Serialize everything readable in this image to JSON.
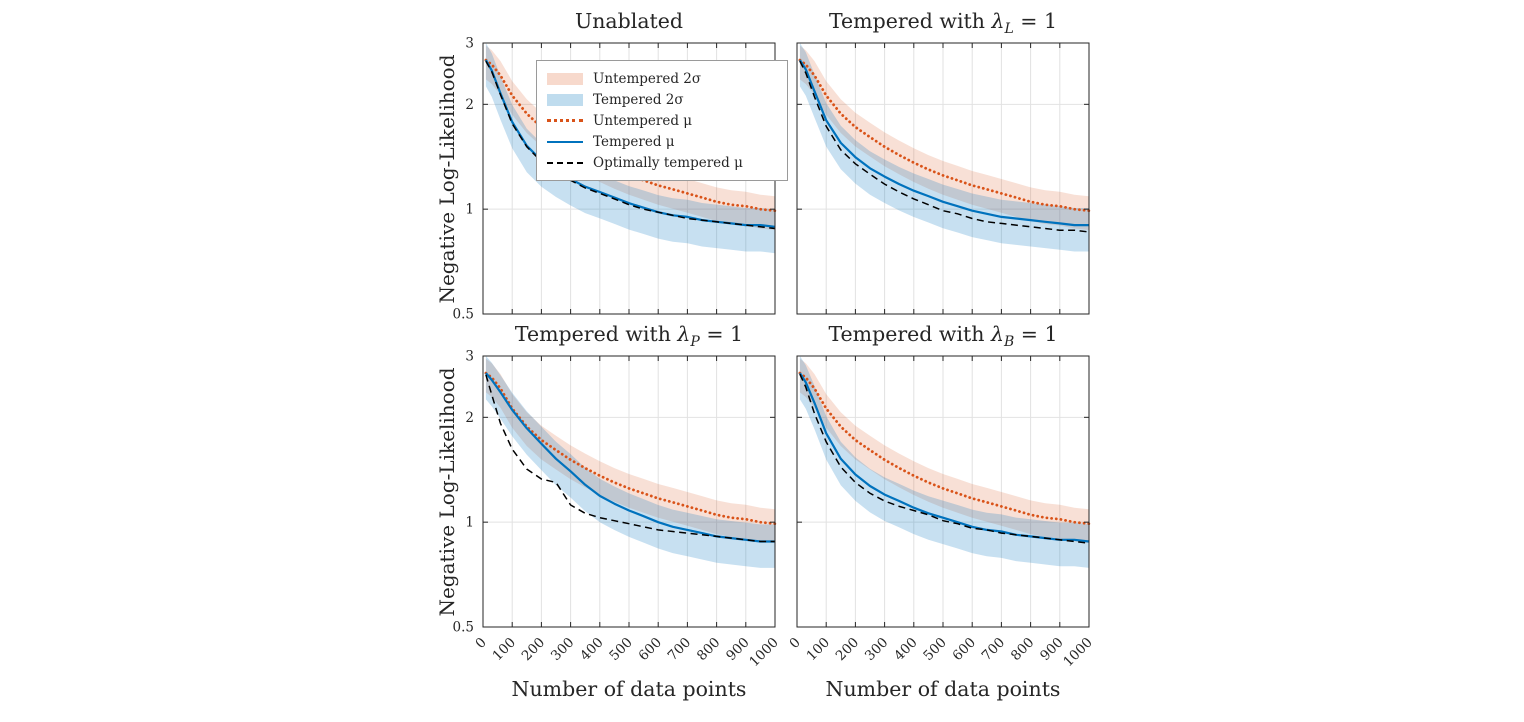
{
  "chart_data": {
    "type": "line",
    "title": "",
    "xlabel": "Number of data points",
    "ylabel": "Negative Log-Likelihood",
    "xlim": [
      0,
      1000
    ],
    "ylim": [
      0.5,
      3
    ],
    "yscale": "log",
    "grid": true,
    "xticks": [
      0,
      100,
      200,
      300,
      400,
      500,
      600,
      700,
      800,
      900,
      1000
    ],
    "yticks": [
      0.5,
      1,
      2,
      3
    ],
    "ytick_labels": [
      "0.5",
      "1",
      "2",
      "3"
    ],
    "legend_position": "upper-left of first panel",
    "legend": [
      {
        "label": "Untempered 2σ",
        "type": "band",
        "color": "#D95319"
      },
      {
        "label": "Tempered 2σ",
        "type": "band",
        "color": "#0072BD"
      },
      {
        "label": "Untempered μ",
        "type": "dotted-line",
        "color": "#D95319"
      },
      {
        "label": "Tempered μ",
        "type": "solid-line",
        "color": "#0072BD"
      },
      {
        "label": "Optimally tempered μ",
        "type": "dashed-line",
        "color": "#000000"
      }
    ],
    "colors": {
      "untempered_line": "#D95319",
      "tempered_line": "#0072BD",
      "optimal_line": "#000000",
      "untempered_band": "rgba(217,83,25,0.18)",
      "tempered_band": "rgba(0,114,189,0.22)",
      "grid": "#e2e2e2",
      "axis": "#262626"
    },
    "band_factors": {
      "untempered": {
        "upper": 1.1,
        "lower": 0.88
      },
      "tempered": {
        "upper": 1.12,
        "lower": 0.84
      }
    },
    "x": [
      10,
      30,
      60,
      100,
      150,
      200,
      250,
      300,
      350,
      400,
      450,
      500,
      550,
      600,
      650,
      700,
      750,
      800,
      850,
      900,
      950,
      1000
    ],
    "panels": [
      {
        "title": {
          "pre": "Unablated",
          "lambda": "",
          "sub": "",
          "post": ""
        },
        "series": {
          "untempered_mu": [
            2.68,
            2.6,
            2.42,
            2.12,
            1.88,
            1.72,
            1.61,
            1.51,
            1.43,
            1.36,
            1.3,
            1.25,
            1.21,
            1.17,
            1.14,
            1.11,
            1.08,
            1.05,
            1.03,
            1.02,
            1.0,
            0.99
          ],
          "tempered_mu": [
            2.68,
            2.5,
            2.15,
            1.78,
            1.52,
            1.38,
            1.29,
            1.22,
            1.16,
            1.12,
            1.08,
            1.04,
            1.01,
            0.98,
            0.96,
            0.95,
            0.93,
            0.92,
            0.91,
            0.9,
            0.9,
            0.89
          ],
          "optimal_mu": [
            2.66,
            2.48,
            2.13,
            1.76,
            1.51,
            1.37,
            1.28,
            1.21,
            1.15,
            1.11,
            1.07,
            1.03,
            1.0,
            0.98,
            0.96,
            0.94,
            0.93,
            0.92,
            0.91,
            0.9,
            0.89,
            0.88
          ]
        }
      },
      {
        "title": {
          "pre": "Tempered with ",
          "lambda": "λ",
          "sub": "L",
          "post": " = 1"
        },
        "series": {
          "untempered_mu": [
            2.68,
            2.6,
            2.42,
            2.12,
            1.88,
            1.72,
            1.61,
            1.51,
            1.43,
            1.36,
            1.3,
            1.25,
            1.21,
            1.17,
            1.14,
            1.11,
            1.08,
            1.05,
            1.03,
            1.02,
            1.0,
            0.99
          ],
          "tempered_mu": [
            2.68,
            2.52,
            2.18,
            1.8,
            1.55,
            1.41,
            1.31,
            1.24,
            1.18,
            1.13,
            1.09,
            1.05,
            1.02,
            0.99,
            0.97,
            0.95,
            0.94,
            0.93,
            0.92,
            0.91,
            0.9,
            0.9
          ],
          "optimal_mu": [
            2.66,
            2.46,
            2.1,
            1.73,
            1.48,
            1.35,
            1.26,
            1.18,
            1.12,
            1.07,
            1.03,
            0.99,
            0.97,
            0.94,
            0.92,
            0.91,
            0.9,
            0.89,
            0.88,
            0.87,
            0.87,
            0.86
          ]
        }
      },
      {
        "title": {
          "pre": "Tempered with ",
          "lambda": "λ",
          "sub": "P",
          "post": " = 1"
        },
        "series": {
          "untempered_mu": [
            2.68,
            2.6,
            2.42,
            2.12,
            1.88,
            1.72,
            1.61,
            1.51,
            1.43,
            1.36,
            1.3,
            1.25,
            1.21,
            1.17,
            1.14,
            1.11,
            1.08,
            1.05,
            1.03,
            1.02,
            1.0,
            0.99
          ],
          "tempered_mu": [
            2.68,
            2.56,
            2.36,
            2.1,
            1.86,
            1.68,
            1.52,
            1.4,
            1.28,
            1.19,
            1.13,
            1.08,
            1.04,
            1.0,
            0.97,
            0.95,
            0.93,
            0.91,
            0.9,
            0.89,
            0.88,
            0.88
          ],
          "optimal_mu": [
            2.65,
            2.32,
            1.92,
            1.62,
            1.42,
            1.33,
            1.3,
            1.12,
            1.06,
            1.03,
            1.01,
            0.99,
            0.97,
            0.95,
            0.94,
            0.93,
            0.92,
            0.91,
            0.9,
            0.89,
            0.88,
            0.88
          ]
        }
      },
      {
        "title": {
          "pre": "Tempered with ",
          "lambda": "λ",
          "sub": "B",
          "post": " = 1"
        },
        "series": {
          "untempered_mu": [
            2.68,
            2.6,
            2.42,
            2.12,
            1.88,
            1.72,
            1.61,
            1.51,
            1.43,
            1.36,
            1.3,
            1.25,
            1.21,
            1.17,
            1.14,
            1.11,
            1.08,
            1.05,
            1.03,
            1.02,
            1.0,
            0.99
          ],
          "tempered_mu": [
            2.68,
            2.52,
            2.2,
            1.8,
            1.52,
            1.37,
            1.27,
            1.2,
            1.15,
            1.1,
            1.06,
            1.03,
            1.0,
            0.97,
            0.95,
            0.94,
            0.92,
            0.91,
            0.9,
            0.89,
            0.89,
            0.88
          ],
          "optimal_mu": [
            2.66,
            2.44,
            2.05,
            1.7,
            1.44,
            1.3,
            1.21,
            1.15,
            1.11,
            1.08,
            1.05,
            1.01,
            0.99,
            0.96,
            0.95,
            0.93,
            0.92,
            0.91,
            0.9,
            0.89,
            0.88,
            0.87
          ]
        }
      }
    ]
  }
}
